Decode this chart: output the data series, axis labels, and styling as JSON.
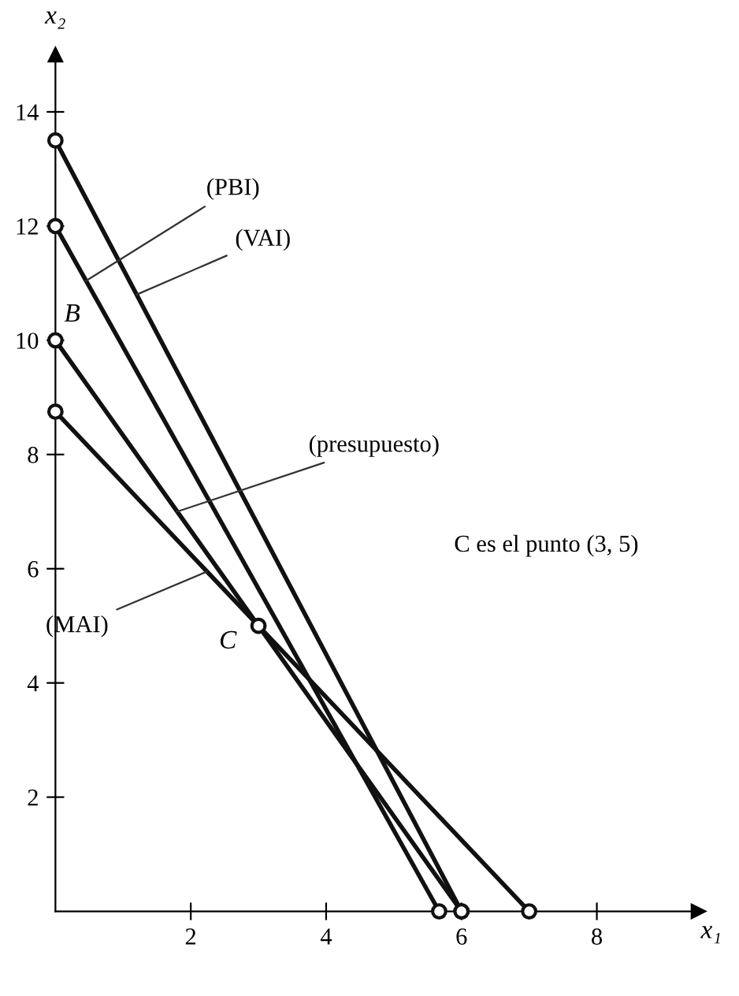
{
  "chart_data": {
    "type": "line",
    "xlabel": "x₁",
    "ylabel": "x₂",
    "series": [
      {
        "color": "#111111",
        "x": [
          0,
          6
        ],
        "values": [
          13.5,
          0
        ]
      },
      {
        "color": "#111111",
        "x": [
          0,
          5.67
        ],
        "values": [
          12,
          0
        ]
      },
      {
        "color": "#111111",
        "x": [
          0,
          6
        ],
        "values": [
          10,
          0
        ]
      },
      {
        "color": "#111111",
        "x": [
          0,
          7
        ],
        "values": [
          8.75,
          0
        ]
      },
      {
        "type": "scatter",
        "color": "#111111",
        "x": [
          3
        ],
        "values": [
          5
        ]
      }
    ],
    "marker": "circle",
    "line_style": "solid",
    "grid": false,
    "xlim": [
      0,
      9.5
    ],
    "ylim": [
      0,
      15
    ],
    "xticks": [
      2,
      4,
      6,
      8
    ],
    "yticks": [
      2,
      4,
      6,
      8,
      10,
      12,
      14
    ],
    "annotations": [
      {
        "text": "B",
        "x": 0,
        "y": 10
      },
      {
        "text": "C",
        "x": 3,
        "y": 5
      },
      {
        "text": "(VAI)",
        "x": 1.2,
        "y": 10.8
      },
      {
        "text": "(PBI)",
        "x": 0.45,
        "y": 11.04
      },
      {
        "text": "(presupuesto)",
        "x": 1.8,
        "y": 7
      },
      {
        "text": "(MAI)",
        "x": 2.24,
        "y": 5.95
      },
      "C es el punto (3, 5)"
    ]
  }
}
